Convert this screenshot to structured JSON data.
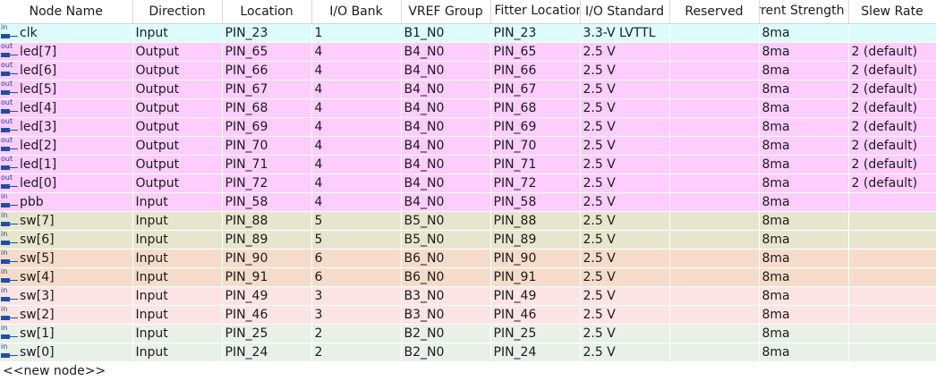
{
  "headers": [
    "Node Name",
    "Direction",
    "Location",
    "I/O Bank",
    "VREF Group",
    "Fitter Location",
    "I/O Standard",
    "Reserved",
    "Current Strength",
    "Slew Rate"
  ],
  "row_colors": {
    "clk": "#ddfdfd",
    "led": "#fdcdfd",
    "bank5": "#e6e6cf",
    "bank6": "#f5dcca",
    "bank3": "#fde4e4",
    "bank2": "#e8f0e8"
  },
  "rows": [
    {
      "dir_tag": "in",
      "name": "clk",
      "direction": "Input",
      "location": "PIN_23",
      "bank": "1",
      "vref": "B1_N0",
      "fitter": "PIN_23",
      "standard": "3.3-V LVTTL",
      "reserved": "",
      "current": "8ma",
      "slew": "",
      "color": "#ddfdfd"
    },
    {
      "dir_tag": "out",
      "name": "led[7]",
      "direction": "Output",
      "location": "PIN_65",
      "bank": "4",
      "vref": "B4_N0",
      "fitter": "PIN_65",
      "standard": "2.5 V",
      "reserved": "",
      "current": "8ma",
      "slew": "2 (default)",
      "color": "#fdcdfd"
    },
    {
      "dir_tag": "out",
      "name": "led[6]",
      "direction": "Output",
      "location": "PIN_66",
      "bank": "4",
      "vref": "B4_N0",
      "fitter": "PIN_66",
      "standard": "2.5 V",
      "reserved": "",
      "current": "8ma",
      "slew": "2 (default)",
      "color": "#fdcdfd"
    },
    {
      "dir_tag": "out",
      "name": "led[5]",
      "direction": "Output",
      "location": "PIN_67",
      "bank": "4",
      "vref": "B4_N0",
      "fitter": "PIN_67",
      "standard": "2.5 V",
      "reserved": "",
      "current": "8ma",
      "slew": "2 (default)",
      "color": "#fdcdfd"
    },
    {
      "dir_tag": "out",
      "name": "led[4]",
      "direction": "Output",
      "location": "PIN_68",
      "bank": "4",
      "vref": "B4_N0",
      "fitter": "PIN_68",
      "standard": "2.5 V",
      "reserved": "",
      "current": "8ma",
      "slew": "2 (default)",
      "color": "#fdcdfd"
    },
    {
      "dir_tag": "out",
      "name": "led[3]",
      "direction": "Output",
      "location": "PIN_69",
      "bank": "4",
      "vref": "B4_N0",
      "fitter": "PIN_69",
      "standard": "2.5 V",
      "reserved": "",
      "current": "8ma",
      "slew": "2 (default)",
      "color": "#fdcdfd"
    },
    {
      "dir_tag": "out",
      "name": "led[2]",
      "direction": "Output",
      "location": "PIN_70",
      "bank": "4",
      "vref": "B4_N0",
      "fitter": "PIN_70",
      "standard": "2.5 V",
      "reserved": "",
      "current": "8ma",
      "slew": "2 (default)",
      "color": "#fdcdfd"
    },
    {
      "dir_tag": "out",
      "name": "led[1]",
      "direction": "Output",
      "location": "PIN_71",
      "bank": "4",
      "vref": "B4_N0",
      "fitter": "PIN_71",
      "standard": "2.5 V",
      "reserved": "",
      "current": "8ma",
      "slew": "2 (default)",
      "color": "#fdcdfd"
    },
    {
      "dir_tag": "out",
      "name": "led[0]",
      "direction": "Output",
      "location": "PIN_72",
      "bank": "4",
      "vref": "B4_N0",
      "fitter": "PIN_72",
      "standard": "2.5 V",
      "reserved": "",
      "current": "8ma",
      "slew": "2 (default)",
      "color": "#fdcdfd"
    },
    {
      "dir_tag": "in",
      "name": "pbb",
      "direction": "Input",
      "location": "PIN_58",
      "bank": "4",
      "vref": "B4_N0",
      "fitter": "PIN_58",
      "standard": "2.5 V",
      "reserved": "",
      "current": "8ma",
      "slew": "",
      "color": "#fdcdfd"
    },
    {
      "dir_tag": "in",
      "name": "sw[7]",
      "direction": "Input",
      "location": "PIN_88",
      "bank": "5",
      "vref": "B5_N0",
      "fitter": "PIN_88",
      "standard": "2.5 V",
      "reserved": "",
      "current": "8ma",
      "slew": "",
      "color": "#e6e6cf"
    },
    {
      "dir_tag": "in",
      "name": "sw[6]",
      "direction": "Input",
      "location": "PIN_89",
      "bank": "5",
      "vref": "B5_N0",
      "fitter": "PIN_89",
      "standard": "2.5 V",
      "reserved": "",
      "current": "8ma",
      "slew": "",
      "color": "#e6e6cf"
    },
    {
      "dir_tag": "in",
      "name": "sw[5]",
      "direction": "Input",
      "location": "PIN_90",
      "bank": "6",
      "vref": "B6_N0",
      "fitter": "PIN_90",
      "standard": "2.5 V",
      "reserved": "",
      "current": "8ma",
      "slew": "",
      "color": "#f5dcca"
    },
    {
      "dir_tag": "in",
      "name": "sw[4]",
      "direction": "Input",
      "location": "PIN_91",
      "bank": "6",
      "vref": "B6_N0",
      "fitter": "PIN_91",
      "standard": "2.5 V",
      "reserved": "",
      "current": "8ma",
      "slew": "",
      "color": "#f5dcca"
    },
    {
      "dir_tag": "in",
      "name": "sw[3]",
      "direction": "Input",
      "location": "PIN_49",
      "bank": "3",
      "vref": "B3_N0",
      "fitter": "PIN_49",
      "standard": "2.5 V",
      "reserved": "",
      "current": "8ma",
      "slew": "",
      "color": "#fde4e4"
    },
    {
      "dir_tag": "in",
      "name": "sw[2]",
      "direction": "Input",
      "location": "PIN_46",
      "bank": "3",
      "vref": "B3_N0",
      "fitter": "PIN_46",
      "standard": "2.5 V",
      "reserved": "",
      "current": "8ma",
      "slew": "",
      "color": "#fde4e4"
    },
    {
      "dir_tag": "in",
      "name": "sw[1]",
      "direction": "Input",
      "location": "PIN_25",
      "bank": "2",
      "vref": "B2_N0",
      "fitter": "PIN_25",
      "standard": "2.5 V",
      "reserved": "",
      "current": "8ma",
      "slew": "",
      "color": "#e8f0e8"
    },
    {
      "dir_tag": "in",
      "name": "sw[0]",
      "direction": "Input",
      "location": "PIN_24",
      "bank": "2",
      "vref": "B2_N0",
      "fitter": "PIN_24",
      "standard": "2.5 V",
      "reserved": "",
      "current": "8ma",
      "slew": "",
      "color": "#e8f0e8"
    }
  ],
  "new_node_label": "<<new node>>",
  "icons": {
    "input": "input-pin-icon",
    "output": "output-pin-icon"
  }
}
